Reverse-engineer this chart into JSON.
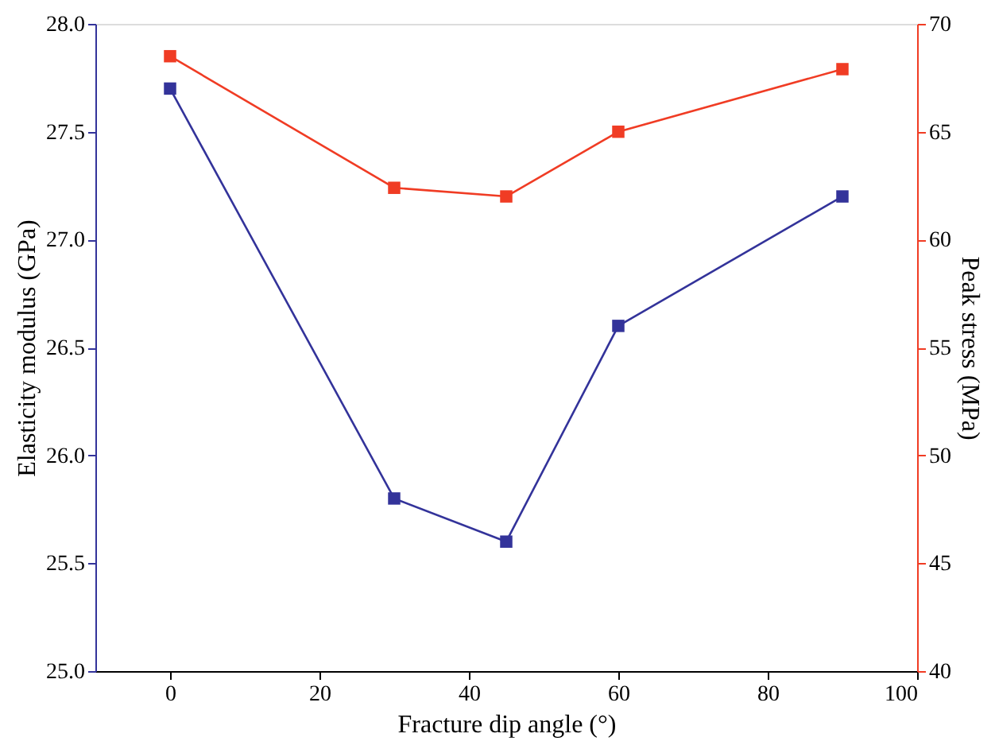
{
  "chart_data": {
    "type": "line",
    "xlabel": "Fracture dip angle (°)",
    "ylabel": "Elasticity modulus (GPa)",
    "y2label": "Peak stress (MPa)",
    "x": [
      0,
      30,
      45,
      60,
      90
    ],
    "xlim": [
      -10,
      100
    ],
    "xticks": [
      0,
      20,
      40,
      60,
      80,
      100
    ],
    "ylim": [
      25.0,
      28.0
    ],
    "yticks": [
      {
        "value": 25,
        "label": "25.0"
      },
      25.5,
      {
        "value": 26,
        "label": "26.0"
      },
      26.5,
      {
        "value": 27,
        "label": "27.0"
      },
      27.5,
      {
        "value": 28,
        "label": "28.0"
      }
    ],
    "y2lim": [
      40,
      70
    ],
    "y2ticks": [
      40,
      45,
      50,
      55,
      60,
      65,
      70
    ],
    "series": [
      {
        "color": "#33339a",
        "values": [
          27.7,
          25.8,
          25.6,
          26.6,
          27.2
        ]
      },
      {
        "color": "#f03c24",
        "axis": "y2",
        "values": [
          68.5,
          62.4,
          62.0,
          65.0,
          67.9
        ]
      }
    ],
    "marker": "square",
    "line_style": "solid",
    "grid": false
  }
}
